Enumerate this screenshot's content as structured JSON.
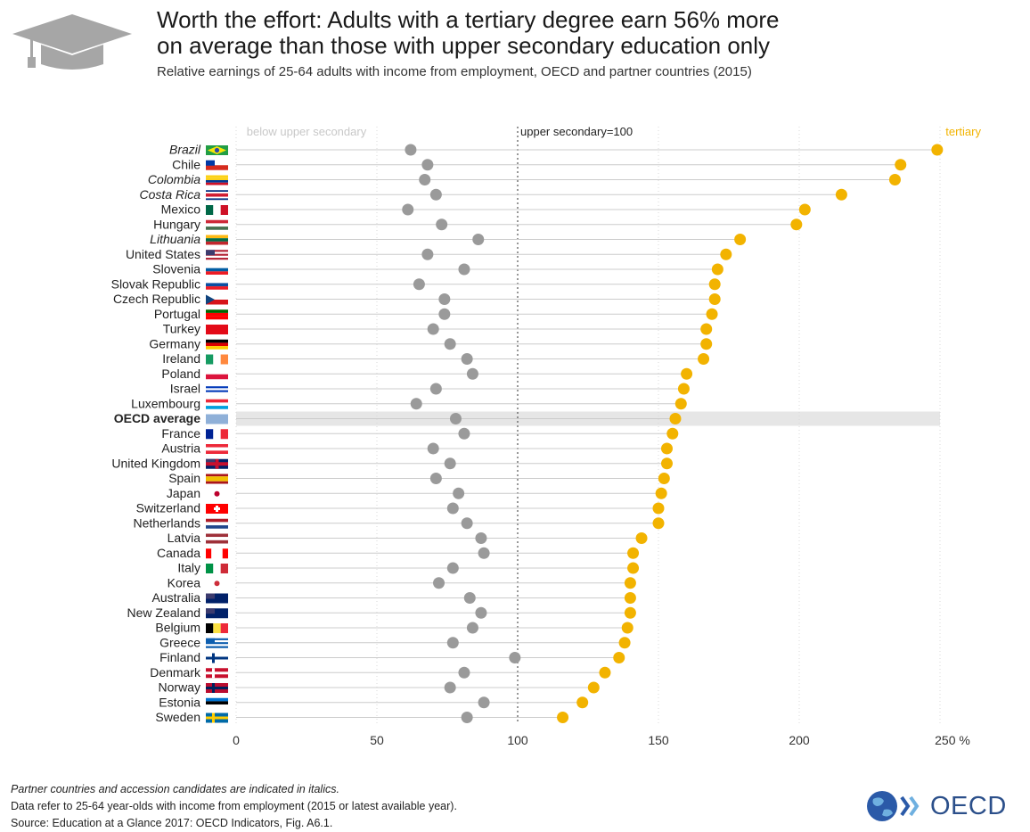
{
  "header": {
    "title_line1": "Worth the effort: Adults with a tertiary degree earn 56% more",
    "title_line2": "on average than those with upper secondary education only",
    "subtitle": "Relative earnings of 25-64 adults with income from employment, OECD and partner countries (2015)"
  },
  "colors": {
    "below": "#9a9a9a",
    "tertiary": "#f2b300",
    "line": "#cccccc",
    "highlight": "#e6e6e6"
  },
  "chart_data": {
    "type": "dot",
    "legend": {
      "below": "below upper secondary",
      "reference": "upper secondary=100",
      "tertiary": "tertiary"
    },
    "x_ticks": [
      "0",
      "50",
      "100",
      "150",
      "200",
      "250 %"
    ],
    "xlim": [
      0,
      250
    ],
    "reference_value": 100,
    "series": [
      {
        "name": "below upper secondary",
        "key": "below"
      },
      {
        "name": "tertiary",
        "key": "tertiary"
      }
    ],
    "rows": [
      {
        "country": "Brazil",
        "flag": "brazil",
        "italic": true,
        "below": 62,
        "tertiary": 249
      },
      {
        "country": "Chile",
        "flag": "chile",
        "italic": false,
        "below": 68,
        "tertiary": 236
      },
      {
        "country": "Colombia",
        "flag": "colombia",
        "italic": true,
        "below": 67,
        "tertiary": 234
      },
      {
        "country": "Costa Rica",
        "flag": "costa-rica",
        "italic": true,
        "below": 71,
        "tertiary": 215
      },
      {
        "country": "Mexico",
        "flag": "mexico",
        "italic": false,
        "below": 61,
        "tertiary": 202
      },
      {
        "country": "Hungary",
        "flag": "hungary",
        "italic": false,
        "below": 73,
        "tertiary": 199
      },
      {
        "country": "Lithuania",
        "flag": "lithuania",
        "italic": true,
        "below": 86,
        "tertiary": 179
      },
      {
        "country": "United States",
        "flag": "usa",
        "italic": false,
        "below": 68,
        "tertiary": 174
      },
      {
        "country": "Slovenia",
        "flag": "slovenia",
        "italic": false,
        "below": 81,
        "tertiary": 171
      },
      {
        "country": "Slovak Republic",
        "flag": "slovakia",
        "italic": false,
        "below": 65,
        "tertiary": 170
      },
      {
        "country": "Czech Republic",
        "flag": "czech",
        "italic": false,
        "below": 74,
        "tertiary": 170
      },
      {
        "country": "Portugal",
        "flag": "portugal",
        "italic": false,
        "below": 74,
        "tertiary": 169
      },
      {
        "country": "Turkey",
        "flag": "turkey",
        "italic": false,
        "below": 70,
        "tertiary": 167
      },
      {
        "country": "Germany",
        "flag": "germany",
        "italic": false,
        "below": 76,
        "tertiary": 167
      },
      {
        "country": "Ireland",
        "flag": "ireland",
        "italic": false,
        "below": 82,
        "tertiary": 166
      },
      {
        "country": "Poland",
        "flag": "poland",
        "italic": false,
        "below": 84,
        "tertiary": 160
      },
      {
        "country": "Israel",
        "flag": "israel",
        "italic": false,
        "below": 71,
        "tertiary": 159
      },
      {
        "country": "Luxembourg",
        "flag": "luxembourg",
        "italic": false,
        "below": 64,
        "tertiary": 158
      },
      {
        "country": "OECD average",
        "flag": "oecd",
        "italic": false,
        "bold": true,
        "highlight": true,
        "below": 78,
        "tertiary": 156
      },
      {
        "country": "France",
        "flag": "france",
        "italic": false,
        "below": 81,
        "tertiary": 155
      },
      {
        "country": "Austria",
        "flag": "austria",
        "italic": false,
        "below": 70,
        "tertiary": 153
      },
      {
        "country": "United Kingdom",
        "flag": "uk",
        "italic": false,
        "below": 76,
        "tertiary": 153
      },
      {
        "country": "Spain",
        "flag": "spain",
        "italic": false,
        "below": 71,
        "tertiary": 152
      },
      {
        "country": "Japan",
        "flag": "japan",
        "italic": false,
        "below": 79,
        "tertiary": 151
      },
      {
        "country": "Switzerland",
        "flag": "switzerland",
        "italic": false,
        "below": 77,
        "tertiary": 150
      },
      {
        "country": "Netherlands",
        "flag": "netherlands",
        "italic": false,
        "below": 82,
        "tertiary": 150
      },
      {
        "country": "Latvia",
        "flag": "latvia",
        "italic": false,
        "below": 87,
        "tertiary": 144
      },
      {
        "country": "Canada",
        "flag": "canada",
        "italic": false,
        "below": 88,
        "tertiary": 141
      },
      {
        "country": "Italy",
        "flag": "italy",
        "italic": false,
        "below": 77,
        "tertiary": 141
      },
      {
        "country": "Korea",
        "flag": "korea",
        "italic": false,
        "below": 72,
        "tertiary": 140
      },
      {
        "country": "Australia",
        "flag": "australia",
        "italic": false,
        "below": 83,
        "tertiary": 140
      },
      {
        "country": "New Zealand",
        "flag": "new-zealand",
        "italic": false,
        "below": 87,
        "tertiary": 140
      },
      {
        "country": "Belgium",
        "flag": "belgium",
        "italic": false,
        "below": 84,
        "tertiary": 139
      },
      {
        "country": "Greece",
        "flag": "greece",
        "italic": false,
        "below": 77,
        "tertiary": 138
      },
      {
        "country": "Finland",
        "flag": "finland",
        "italic": false,
        "below": 99,
        "tertiary": 136
      },
      {
        "country": "Denmark",
        "flag": "denmark",
        "italic": false,
        "below": 81,
        "tertiary": 131
      },
      {
        "country": "Norway",
        "flag": "norway",
        "italic": false,
        "below": 76,
        "tertiary": 127
      },
      {
        "country": "Estonia",
        "flag": "estonia",
        "italic": false,
        "below": 88,
        "tertiary": 123
      },
      {
        "country": "Sweden",
        "flag": "sweden",
        "italic": false,
        "below": 82,
        "tertiary": 116
      }
    ]
  },
  "footer": {
    "note1": "Partner countries and accession candidates are indicated in italics.",
    "note2": "Data refer to 25-64 year-olds with income from employment (2015 or latest available year).",
    "source": "Source: Education at a Glance 2017: OECD Indicators, Fig. A6.1.",
    "logo_text": "OECD"
  }
}
